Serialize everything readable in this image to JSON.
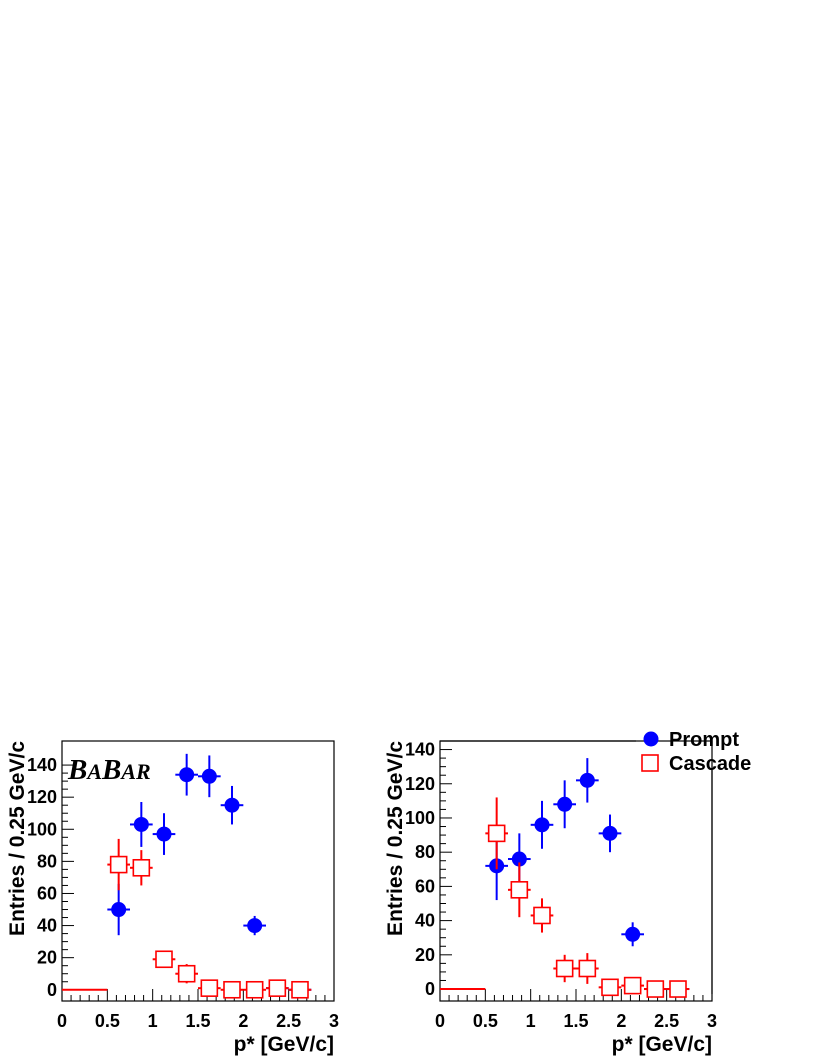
{
  "colors": {
    "prompt": "#0000ff",
    "cascade": "#ff0000",
    "axis": "#000000",
    "background": "#ffffff"
  },
  "logo": {
    "b1": "B",
    "a1": "A",
    "b2": "B",
    "ar": "AR"
  },
  "legend": {
    "prompt_label": "Prompt",
    "cascade_label": "Cascade",
    "prompt_marker": "filled-circle",
    "cascade_marker": "open-square"
  },
  "chart_data": [
    {
      "type": "scatter",
      "title": "",
      "xlabel": "p* [GeV/c]",
      "ylabel": "Entries / 0.25 GeV/c",
      "xlim": [
        0,
        3
      ],
      "ylim": [
        -7,
        155
      ],
      "xticks": [
        "0",
        "0.5",
        "1",
        "1.5",
        "2",
        "2.5",
        "3"
      ],
      "yticks": [
        "0",
        "20",
        "40",
        "60",
        "80",
        "100",
        "120",
        "140"
      ],
      "x_bin_width": 0.25,
      "series": [
        {
          "name": "Prompt",
          "marker": "filled-circle",
          "x": [
            0.625,
            0.875,
            1.125,
            1.375,
            1.625,
            1.875,
            2.125,
            2.375,
            2.625
          ],
          "y": [
            50,
            103,
            97,
            134,
            133,
            115,
            40,
            1,
            0
          ],
          "yerr": [
            16,
            14,
            13,
            13,
            13,
            12,
            6,
            2,
            2
          ]
        },
        {
          "name": "Cascade",
          "marker": "open-square",
          "x": [
            0.625,
            0.875,
            1.125,
            1.375,
            1.625,
            1.875,
            2.125,
            2.375,
            2.625
          ],
          "y": [
            78,
            76,
            19,
            10,
            1,
            0,
            0,
            1,
            0
          ],
          "yerr": [
            16,
            11,
            4,
            6,
            3,
            2,
            2,
            2,
            2
          ]
        },
        {
          "name": "Cascade-baseline",
          "x_range": [
            0,
            0.5
          ],
          "y": 0
        }
      ]
    },
    {
      "type": "scatter",
      "title": "",
      "xlabel": "p* [GeV/c]",
      "ylabel": "Entries / 0.25 GeV/c",
      "xlim": [
        0,
        3
      ],
      "ylim": [
        -7,
        145
      ],
      "xticks": [
        "0",
        "0.5",
        "1",
        "1.5",
        "2",
        "2.5",
        "3"
      ],
      "yticks": [
        "0",
        "20",
        "40",
        "60",
        "80",
        "100",
        "120",
        "140"
      ],
      "x_bin_width": 0.25,
      "series": [
        {
          "name": "Prompt",
          "marker": "filled-circle",
          "x": [
            0.625,
            0.875,
            1.125,
            1.375,
            1.625,
            1.875,
            2.125,
            2.375,
            2.625
          ],
          "y": [
            72,
            76,
            96,
            108,
            122,
            91,
            32,
            0,
            0
          ],
          "yerr": [
            20,
            15,
            14,
            14,
            13,
            11,
            7,
            2,
            2
          ]
        },
        {
          "name": "Cascade",
          "marker": "open-square",
          "x": [
            0.625,
            0.875,
            1.125,
            1.375,
            1.625,
            1.875,
            2.125,
            2.375,
            2.625
          ],
          "y": [
            91,
            58,
            43,
            12,
            12,
            1,
            2,
            0,
            0
          ],
          "yerr": [
            21,
            16,
            10,
            8,
            9,
            4,
            3,
            2,
            2
          ]
        },
        {
          "name": "Cascade-baseline",
          "x_range": [
            0,
            0.5
          ],
          "y": 0
        }
      ]
    }
  ]
}
